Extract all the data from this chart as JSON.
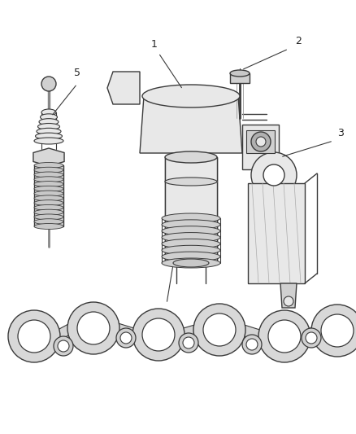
{
  "bg_color": "#ffffff",
  "line_color": "#3a3a3a",
  "label_color": "#222222",
  "fig_width": 4.38,
  "fig_height": 5.33,
  "dpi": 100
}
